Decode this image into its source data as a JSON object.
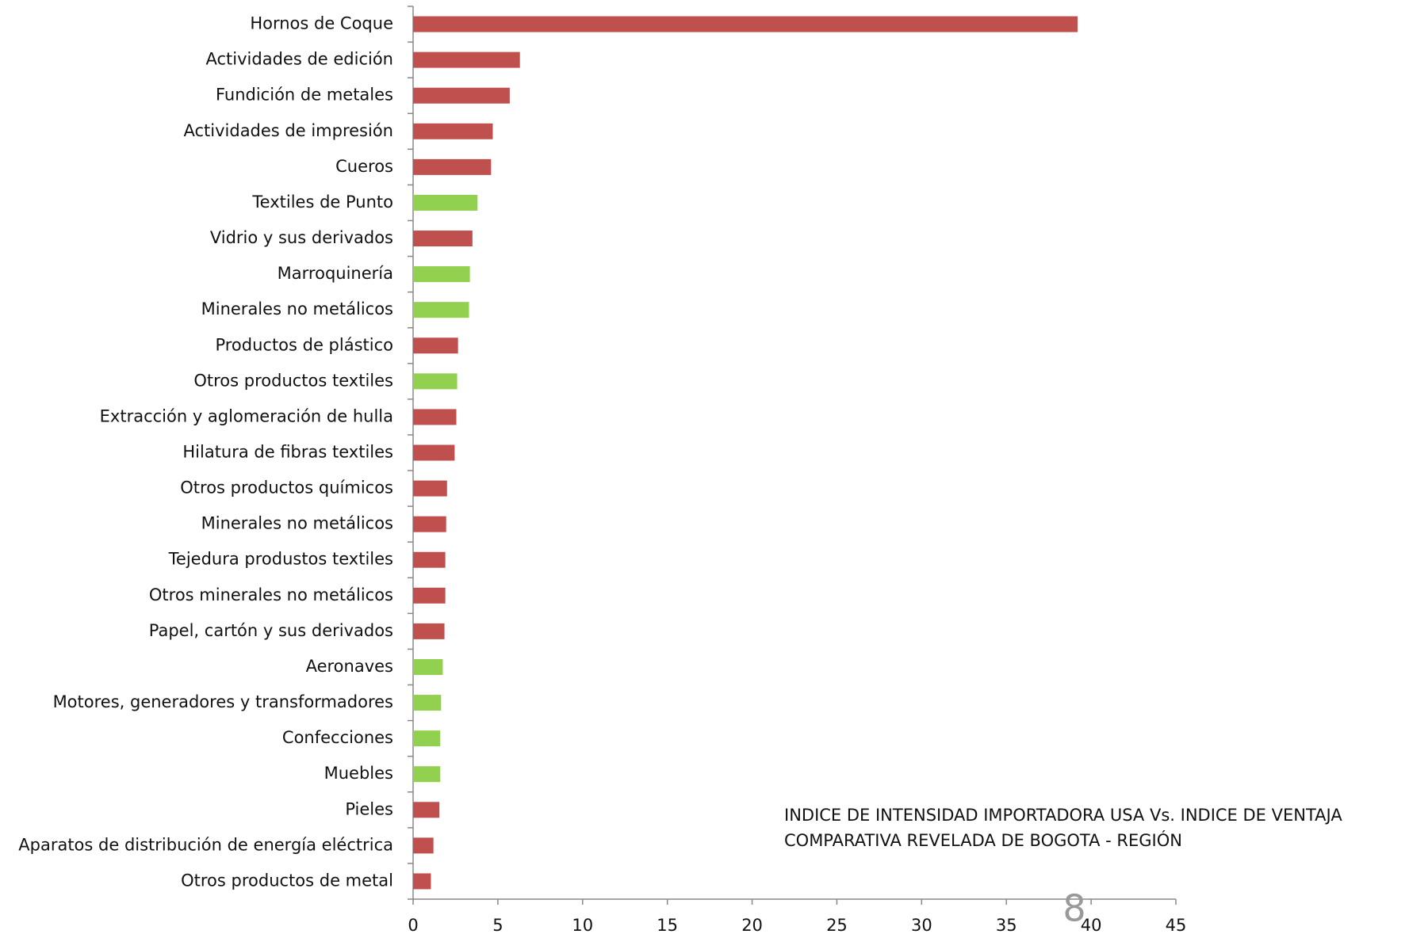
{
  "chart_data": {
    "type": "barh",
    "categories": [
      "Hornos de Coque",
      "Actividades de edición",
      "Fundición de metales",
      "Actividades de impresión",
      "Cueros",
      "Textiles de Punto",
      "Vidrio y sus derivados",
      "Marroquinería",
      "Minerales no metálicos",
      "Productos de plástico",
      "Otros productos textiles",
      "Extracción y aglomeración de hulla",
      "Hilatura de fibras textiles",
      "Otros productos químicos",
      "Minerales no metálicos",
      "Tejedura produstos textiles",
      "Otros minerales no metálicos",
      "Papel, cartón y sus derivados",
      "Aeronaves",
      "Motores, generadores y transformadores",
      "Confecciones",
      "Muebles",
      "Pieles",
      "Aparatos de distribución de energía eléctrica",
      "Otros productos de metal"
    ],
    "values": [
      39.2,
      6.3,
      5.7,
      4.7,
      4.6,
      3.8,
      3.5,
      3.35,
      3.3,
      2.65,
      2.6,
      2.55,
      2.45,
      2.0,
      1.95,
      1.9,
      1.9,
      1.85,
      1.75,
      1.65,
      1.6,
      1.6,
      1.55,
      1.2,
      1.05
    ],
    "colors": [
      "#c0504d",
      "#c0504d",
      "#c0504d",
      "#c0504d",
      "#c0504d",
      "#92d050",
      "#c0504d",
      "#92d050",
      "#92d050",
      "#c0504d",
      "#92d050",
      "#c0504d",
      "#c0504d",
      "#c0504d",
      "#c0504d",
      "#c0504d",
      "#c0504d",
      "#c0504d",
      "#92d050",
      "#92d050",
      "#92d050",
      "#92d050",
      "#c0504d",
      "#c0504d",
      "#c0504d"
    ],
    "xlim": [
      0,
      45
    ],
    "xticks": [
      0,
      5,
      10,
      15,
      20,
      25,
      30,
      35,
      40,
      45
    ],
    "annotation": [
      "INDICE DE INTENSIDAD IMPORTADORA  USA Vs. INDICE DE VENTAJA",
      "COMPARATIVA REVELADA DE BOGOTA  - REGIÓN"
    ]
  },
  "page_number": "8"
}
